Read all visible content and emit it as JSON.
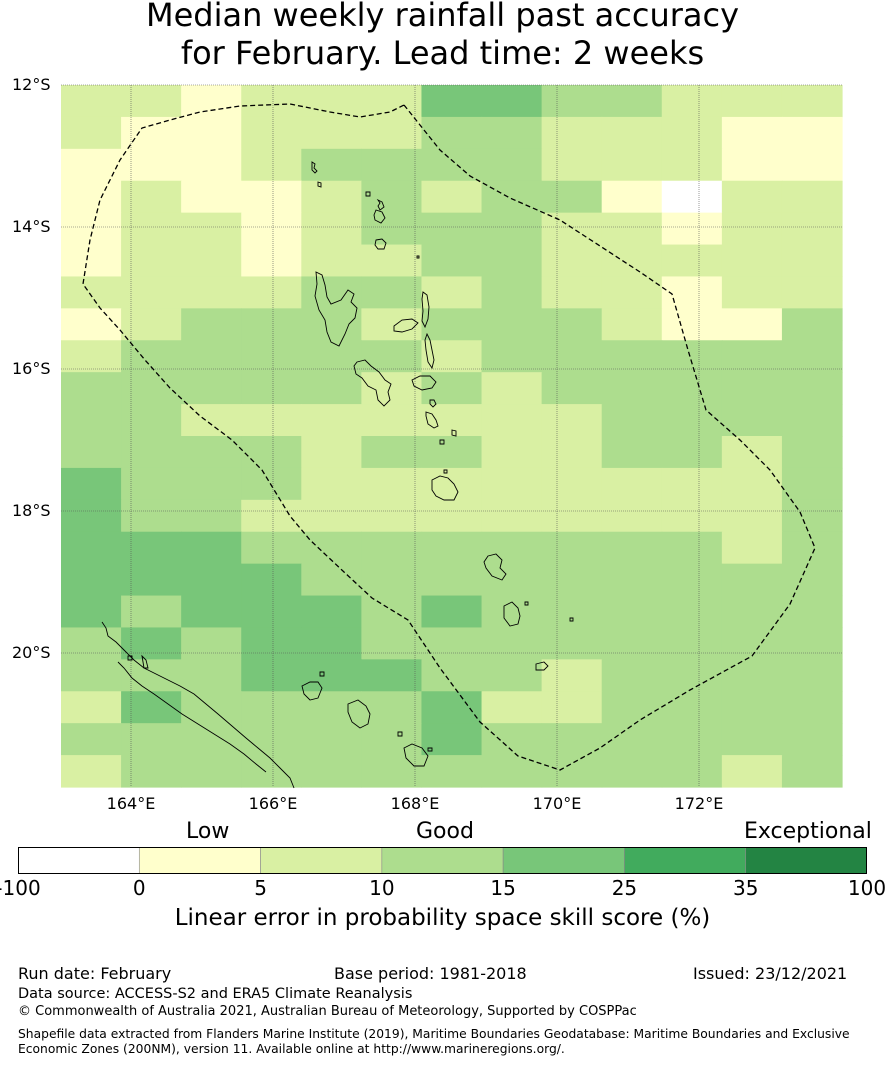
{
  "title_line1": "Median weekly rainfall past accuracy",
  "title_line2": "for February. Lead time: 2 weeks",
  "lat_labels": [
    "12°S",
    "14°S",
    "16°S",
    "18°S",
    "20°S"
  ],
  "lon_labels": [
    "164°E",
    "166°E",
    "168°E",
    "170°E",
    "172°E"
  ],
  "colorbar": {
    "category_labels": [
      "Low",
      "Good",
      "Exceptional"
    ],
    "ticks": [
      "-100",
      "0",
      "5",
      "10",
      "15",
      "25",
      "35",
      "100"
    ],
    "colors": [
      "#ffffff",
      "#ffffcc",
      "#d9f0a3",
      "#addd8e",
      "#78c679",
      "#41ab5d",
      "#238443"
    ],
    "title": "Linear error in probability space skill score (%)"
  },
  "footer": {
    "run_date": "Run date: February",
    "base_period": "Base period: 1981-2018",
    "issued": "Issued: 23/12/2021",
    "data_source": "Data source: ACCESS-S2 and ERA5 Climate Reanalysis",
    "copyright": "© Commonwealth of Australia 2021, Australian Bureau of Meteorology, Supported by COSPPac",
    "shapefile_line1": "Shapefile data extracted from Flanders Marine Institute (2019), Maritime Boundaries Geodatabase: Maritime Boundaries and Exclusive",
    "shapefile_line2": "Economic Zones (200NM), version 11. Available online at http://www.marineregions.org/."
  },
  "grid": {
    "rows": [
      "2212224433222",
      "2112223322211",
      "1112333322211",
      "1211232331022",
      "1221233322122",
      "1221223322222",
      "2222332322122",
      "1233323332113",
      "2333332333333",
      "3333323233333",
      "3322222223333",
      "3333233223323",
      "4333222222223",
      "4332222222223",
      "4443333333323",
      "4444333333333",
      "4344434333333",
      "3434433333333",
      "3334443323333",
      "2433334223333",
      "3333334333333",
      "2333333333323"
    ]
  }
}
